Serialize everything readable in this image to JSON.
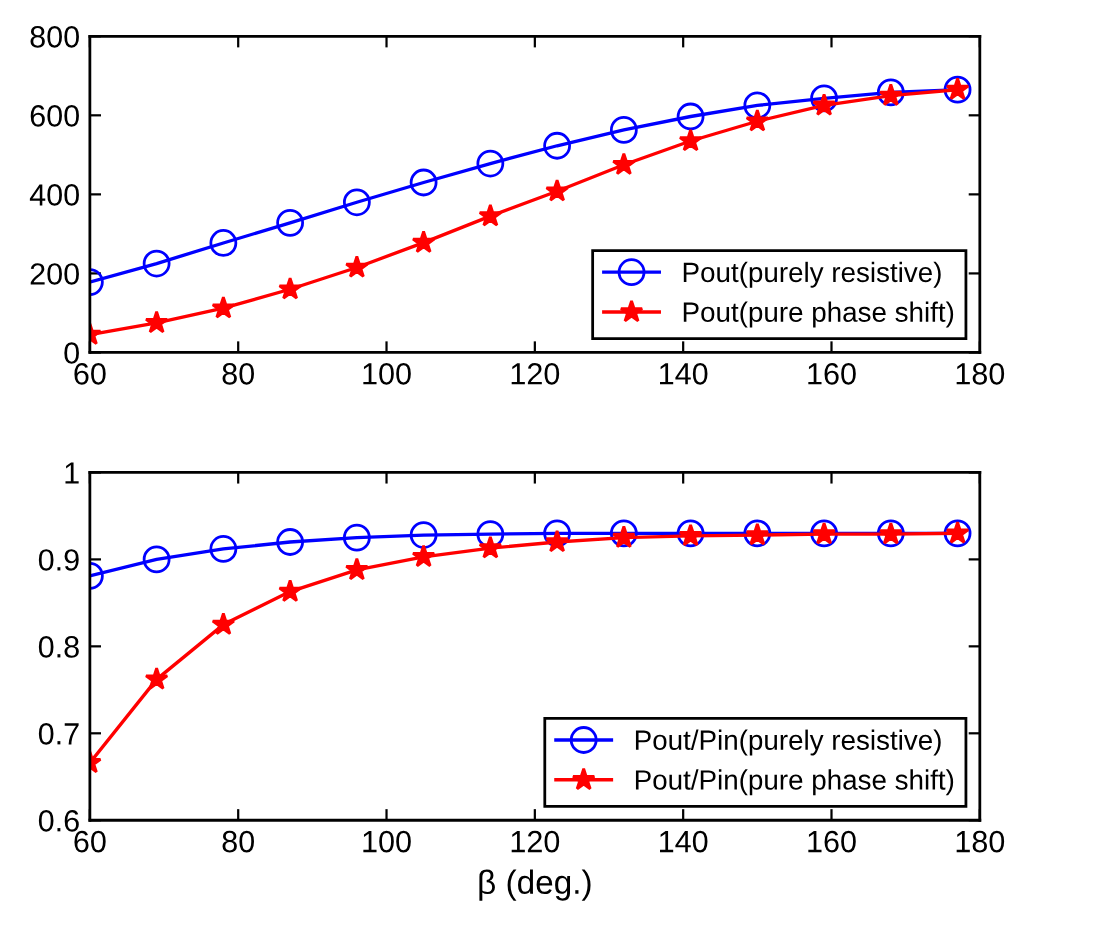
{
  "chart_data": [
    {
      "type": "line",
      "x": [
        60,
        69,
        78,
        87,
        96,
        105,
        114,
        123,
        132,
        141,
        150,
        159,
        168,
        177
      ],
      "xlim": [
        60,
        180
      ],
      "xticks": [
        60,
        80,
        100,
        120,
        140,
        160,
        180
      ],
      "ylim": [
        0,
        800
      ],
      "yticks": [
        0,
        200,
        400,
        600,
        800
      ],
      "grid": false,
      "legend": "bottom right",
      "series": [
        {
          "name": "Pout(purely resistive)",
          "color": "#0000ff",
          "marker": "circle",
          "values": [
            178,
            225,
            277,
            328,
            380,
            430,
            478,
            523,
            563,
            597,
            625,
            643,
            658,
            665
          ]
        },
        {
          "name": "Pout(pure phase shift)",
          "color": "#ff0000",
          "marker": "star",
          "values": [
            45,
            75,
            112,
            160,
            215,
            278,
            345,
            408,
            475,
            535,
            585,
            625,
            650,
            665
          ]
        }
      ]
    },
    {
      "type": "line",
      "x": [
        60,
        69,
        78,
        87,
        96,
        105,
        114,
        123,
        132,
        141,
        150,
        159,
        168,
        177
      ],
      "xlim": [
        60,
        180
      ],
      "xticks": [
        60,
        80,
        100,
        120,
        140,
        160,
        180
      ],
      "ylim": [
        0.6,
        1
      ],
      "yticks": [
        0.6,
        0.7,
        0.8,
        0.9,
        1
      ],
      "grid": false,
      "legend": "bottom right",
      "xlabel": "β (deg.)",
      "series": [
        {
          "name": "Pout/Pin(purely resistive)",
          "color": "#0000ff",
          "marker": "circle",
          "values": [
            0.881,
            0.9,
            0.912,
            0.92,
            0.925,
            0.928,
            0.929,
            0.93,
            0.93,
            0.93,
            0.93,
            0.93,
            0.93,
            0.93
          ]
        },
        {
          "name": "Pout/Pin(pure phase shift)",
          "color": "#ff0000",
          "marker": "star",
          "values": [
            0.666,
            0.762,
            0.825,
            0.863,
            0.888,
            0.903,
            0.913,
            0.92,
            0.925,
            0.927,
            0.928,
            0.929,
            0.929,
            0.93
          ]
        }
      ]
    }
  ]
}
